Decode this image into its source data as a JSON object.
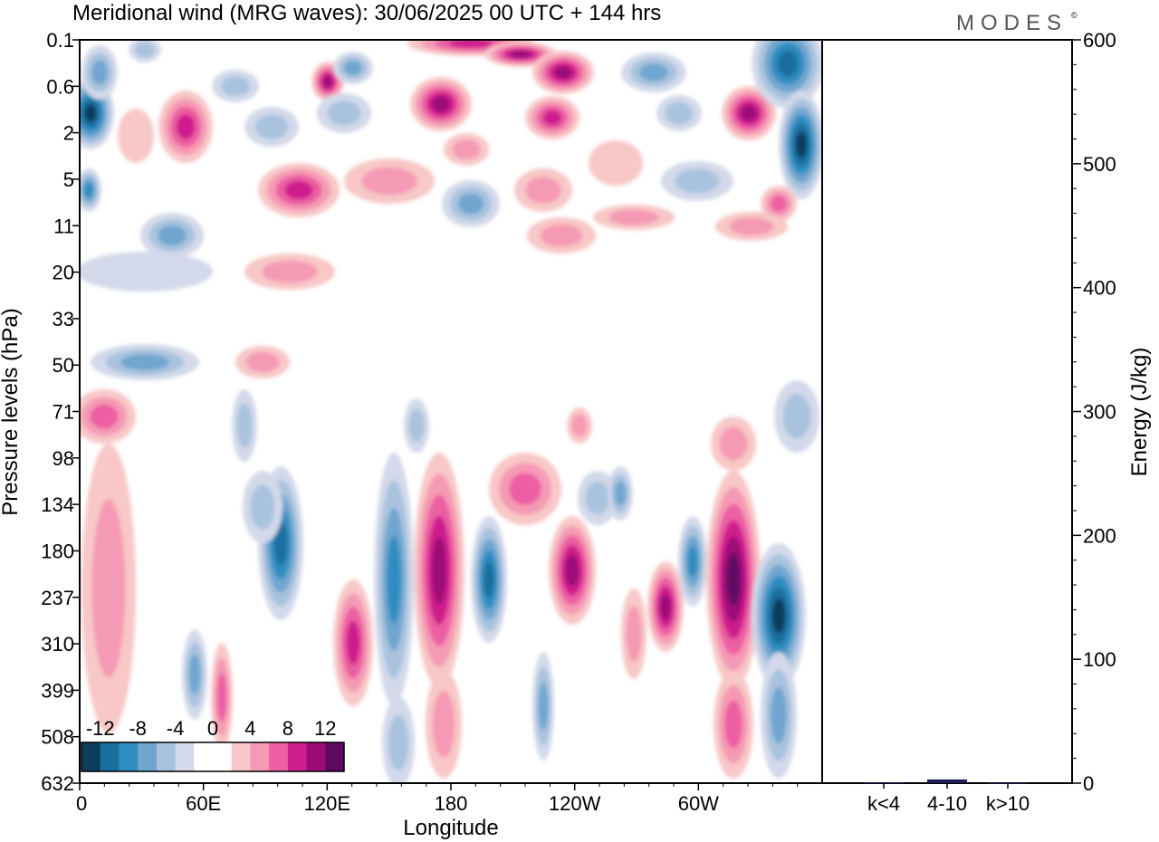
{
  "title": "Meridional wind (MRG waves):  30/06/2025  00 UTC  + 144 hrs",
  "brand": "MODES",
  "brand_mark": "©",
  "chart_data": [
    {
      "type": "heatmap",
      "title": "Meridional wind (MRG waves):  30/06/2025  00 UTC  + 144 hrs",
      "xlabel": "Longitude",
      "ylabel": "Pressure levels (hPa)",
      "x_ticks": [
        "0",
        "60E",
        "120E",
        "180",
        "120W",
        "60W"
      ],
      "y_ticks": [
        "0.1",
        "0.6",
        "2",
        "5",
        "11",
        "20",
        "33",
        "50",
        "71",
        "98",
        "134",
        "180",
        "237",
        "310",
        "399",
        "508",
        "632"
      ],
      "colorbar": {
        "labels": [
          "-12",
          "-8",
          "-4",
          "0",
          "4",
          "8",
          "12"
        ],
        "colors": [
          "#0d3d5c",
          "#1a6e9e",
          "#2f8cc0",
          "#6fa6cf",
          "#a9c3de",
          "#d3d9ea",
          "#ffffff",
          "#ffffff",
          "#f8c7c7",
          "#f59ab4",
          "#ec5fa2",
          "#cf1f8d",
          "#9c0c78",
          "#5e0962"
        ]
      }
    },
    {
      "type": "bar",
      "ylabel": "Energy (J/kg)",
      "categories": [
        "k<4",
        "4-10",
        "k>10"
      ],
      "values": [
        0.5,
        3,
        0.3
      ],
      "ylim": [
        0,
        600
      ],
      "y_ticks": [
        "0",
        "100",
        "200",
        "300",
        "400",
        "500",
        "600"
      ]
    }
  ]
}
